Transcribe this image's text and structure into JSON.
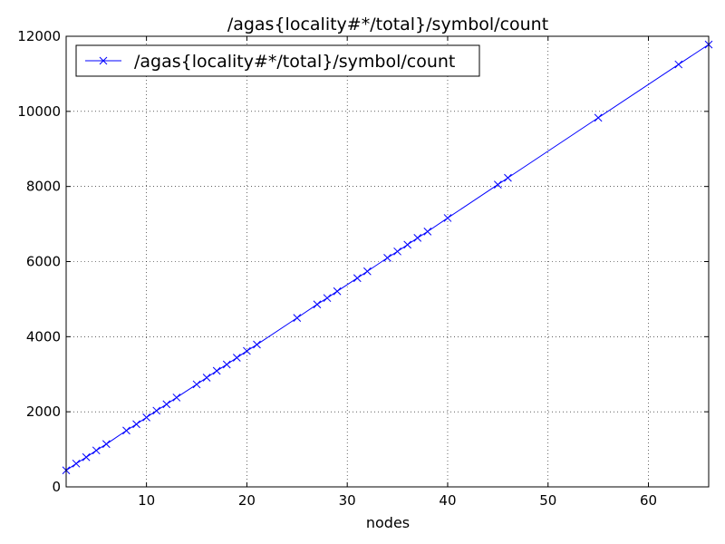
{
  "chart_data": {
    "type": "line",
    "title": "/agas{locality#*/total}/symbol/count",
    "xlabel": "nodes",
    "ylabel": "",
    "xlim": [
      2,
      66
    ],
    "ylim": [
      0,
      12000
    ],
    "xticks": [
      "10",
      "20",
      "30",
      "40",
      "50",
      "60"
    ],
    "yticks": [
      "0",
      "2000",
      "4000",
      "6000",
      "8000",
      "10000",
      "12000"
    ],
    "grid": true,
    "legend_position": "top-left",
    "series": [
      {
        "name": "/agas{locality#*/total}/symbol/count",
        "color": "#0000ff",
        "marker": "x",
        "x": [
          2,
          3,
          4,
          5,
          6,
          8,
          9,
          10,
          11,
          12,
          13,
          15,
          16,
          17,
          18,
          19,
          20,
          21,
          25,
          27,
          28,
          29,
          31,
          32,
          34,
          35,
          36,
          37,
          38,
          40,
          45,
          46,
          55,
          63,
          66
        ],
        "y": [
          440,
          620,
          790,
          970,
          1140,
          1500,
          1670,
          1850,
          2030,
          2200,
          2380,
          2730,
          2910,
          3090,
          3260,
          3440,
          3620,
          3790,
          4500,
          4860,
          5030,
          5210,
          5560,
          5740,
          6100,
          6270,
          6450,
          6630,
          6800,
          7160,
          8050,
          8230,
          9830,
          11250,
          11780
        ]
      }
    ]
  }
}
